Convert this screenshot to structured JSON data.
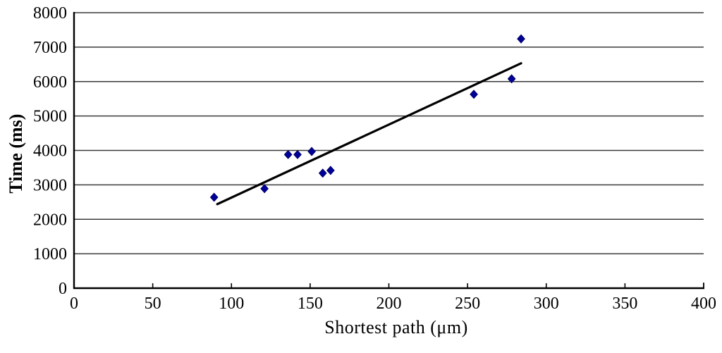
{
  "page": {
    "background": "#ffffff",
    "description": "Scatter chart of task time versus shortest path length with linear trend line"
  },
  "chart_data": {
    "type": "scatter",
    "title": "",
    "xlabel": "Shortest path (μm)",
    "ylabel": "Time (ms)",
    "xlim": [
      0,
      400
    ],
    "ylim": [
      0,
      8000
    ],
    "x_ticks": [
      0,
      50,
      100,
      150,
      200,
      250,
      300,
      350,
      400
    ],
    "y_ticks": [
      0,
      1000,
      2000,
      3000,
      4000,
      5000,
      6000,
      7000,
      8000
    ],
    "grid": "horizontal-only",
    "legend_position": "none",
    "series": [
      {
        "name": "observations",
        "kind": "scatter",
        "marker": "diamond",
        "points": [
          [
            89,
            2640
          ],
          [
            121,
            2890
          ],
          [
            136,
            3880
          ],
          [
            142,
            3880
          ],
          [
            151,
            3970
          ],
          [
            158,
            3340
          ],
          [
            163,
            3420
          ],
          [
            254,
            5630
          ],
          [
            278,
            6080
          ],
          [
            284,
            7240
          ]
        ]
      },
      {
        "name": "trend-line",
        "kind": "line",
        "points": [
          [
            91,
            2440
          ],
          [
            284,
            6530
          ]
        ]
      }
    ],
    "colors": {
      "marker_fill": "#000099",
      "marker_edge": "#000066",
      "trend_line": "#000000",
      "gridline": "#3a3a3a",
      "axis": "#000000",
      "text": "#000000",
      "background": "#ffffff"
    }
  }
}
